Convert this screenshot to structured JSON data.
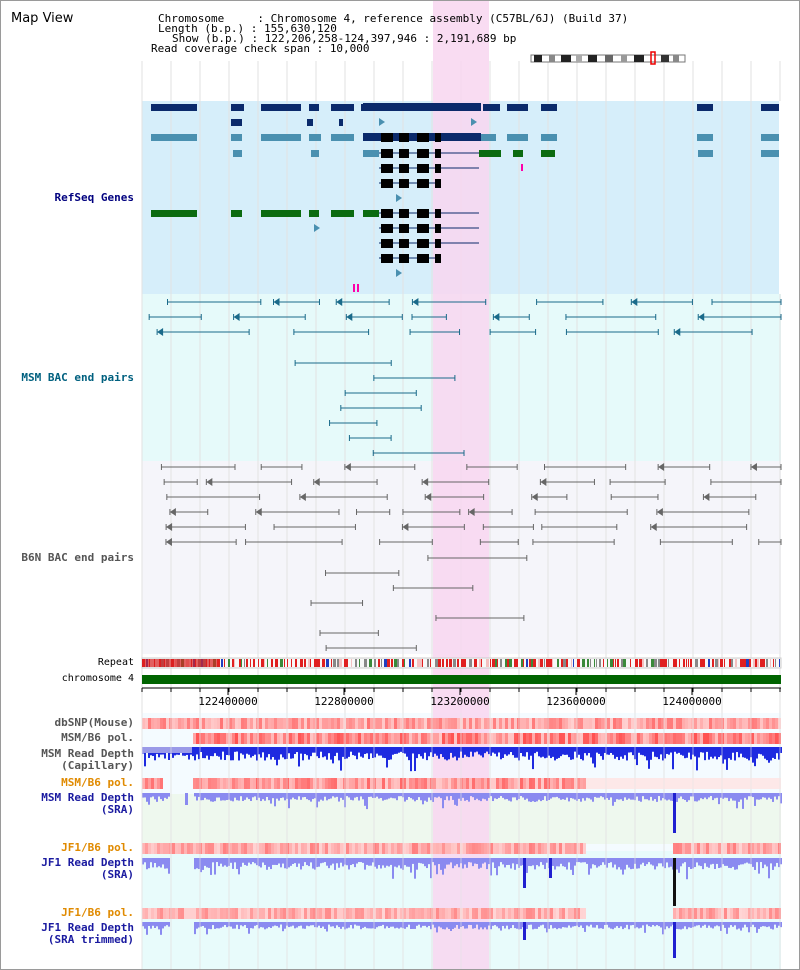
{
  "view": {
    "title": "Map View"
  },
  "header": {
    "chromosome_label": "Chromosome     :",
    "chromosome_value": "Chromosome 4, reference assembly (C57BL/6J) (Build 37)",
    "length_label": "Length (b.p.) :",
    "length_value": "155,630,120",
    "show_label": "Show (b.p.) :",
    "show_value": "122,206,258-124,397,946 : 2,191,689 bp",
    "coverage_label": "Read coverage check span :",
    "coverage_value": "10,000"
  },
  "tracks": {
    "refseq": {
      "label": "RefSeq Genes",
      "color": "#00007f",
      "bg": "#d6eefa"
    },
    "msm_bac": {
      "label": "MSM BAC end pairs",
      "color": "#00607f",
      "bg": "#e6fafa"
    },
    "b6n_bac": {
      "label": "B6N BAC end pairs",
      "color": "#555555",
      "bg": "#f5f5fa"
    },
    "repeat": {
      "label": "Repeat"
    },
    "chromosome": {
      "label": "chromosome 4",
      "color": "#006400"
    }
  },
  "axis": {
    "ticks": [
      "122400000",
      "122800000",
      "123200000",
      "123600000",
      "124000000"
    ]
  },
  "data_tracks": {
    "dbsnp": {
      "label": "dbSNP(Mouse)",
      "color": "#555555"
    },
    "msm_b6_pol_1": {
      "label": "MSM/B6 pol.",
      "color": "#555555"
    },
    "msm_capillary": {
      "label": "MSM Read Depth\n(Capillary)",
      "color": "#555555"
    },
    "msm_b6_pol_2": {
      "label": "MSM/B6 pol.",
      "color": "#e08a00"
    },
    "msm_sra": {
      "label": "MSM Read Depth\n(SRA)",
      "color": "#1a1aa0"
    },
    "jf1_b6_pol_1": {
      "label": "JF1/B6 pol.",
      "color": "#e08a00"
    },
    "jf1_sra": {
      "label": "JF1 Read Depth\n(SRA)",
      "color": "#1a1aa0"
    },
    "jf1_b6_pol_2": {
      "label": "JF1/B6 pol.",
      "color": "#e08a00"
    },
    "jf1_sra_trimmed": {
      "label": "JF1 Read Depth\n(SRA trimmed)",
      "color": "#1a1aa0"
    }
  },
  "colors": {
    "highlight": "#f8d6f0",
    "gene_dark": "#0b2a6b",
    "gene_teal": "#4a90b0",
    "gene_green": "#0b6b10",
    "bac_msm": "#1a6a8a",
    "bac_b6n": "#666666",
    "snp_red": "#e05050",
    "depth_blue": "#2030d0",
    "depth_lavender": "#8888ee"
  }
}
